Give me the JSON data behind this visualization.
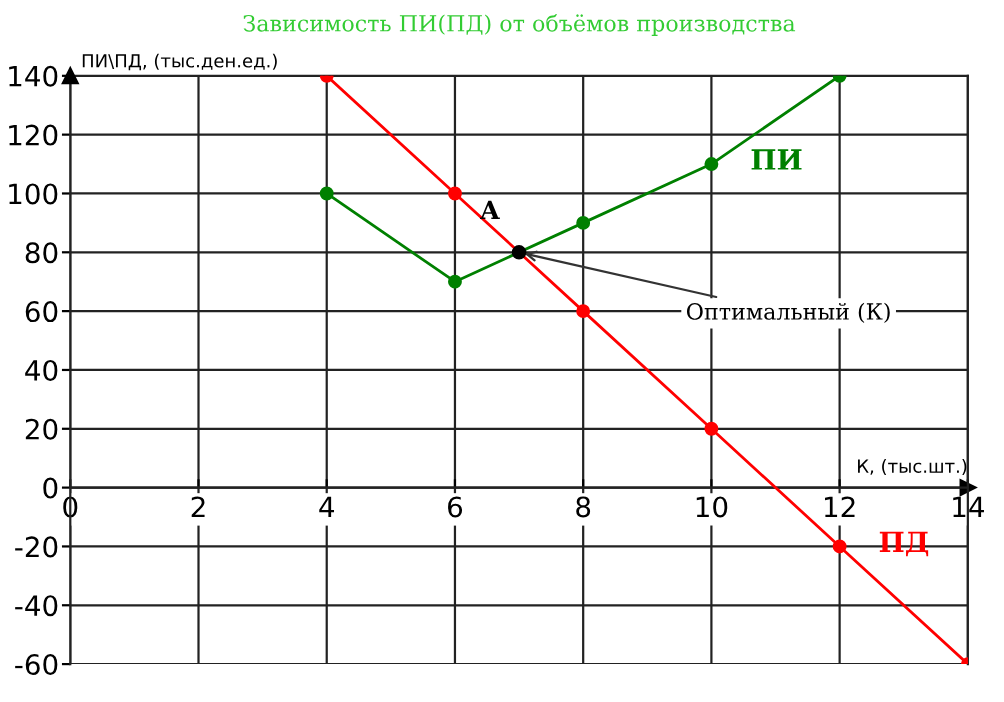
{
  "chart_data": {
    "type": "line",
    "title": "Зависимость ПИ(ПД) от объёмов производства",
    "xlabel": "К, (тыс.шт.)",
    "ylabel": "ПИ\\ПД, (тыс.ден.ед.)",
    "xlim": [
      0,
      14
    ],
    "ylim": [
      -60,
      140
    ],
    "xticks": [
      0,
      2,
      4,
      6,
      8,
      10,
      12,
      14
    ],
    "yticks": [
      -60,
      -40,
      -20,
      0,
      20,
      40,
      60,
      80,
      100,
      120,
      140
    ],
    "grid": true,
    "marker": "circle",
    "line_style": "solid",
    "series": [
      {
        "name": "ПИ",
        "color": "#008000",
        "x": [
          4,
          6,
          8,
          10,
          12
        ],
        "values": [
          100,
          70,
          90,
          110,
          140
        ]
      },
      {
        "name": "ПД",
        "color": "#ff0000",
        "x": [
          4,
          6,
          8,
          10,
          12,
          14
        ],
        "values": [
          140,
          100,
          60,
          20,
          -20,
          -60
        ]
      },
      {
        "type": "scatter",
        "color": "#000000",
        "x": [
          7
        ],
        "values": [
          80
        ]
      }
    ],
    "annotations": [
      {
        "text": "A",
        "x": 7,
        "y": 80
      },
      {
        "text": "Оптимальный (К)",
        "x": 7,
        "y": 80
      }
    ]
  }
}
